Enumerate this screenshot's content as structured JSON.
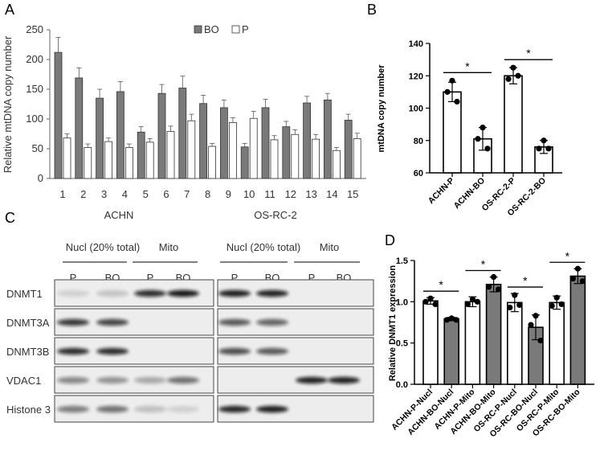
{
  "panels": {
    "A": {
      "letter": "A"
    },
    "B": {
      "letter": "B"
    },
    "C": {
      "letter": "C"
    },
    "D": {
      "letter": "D"
    }
  },
  "chart_data": [
    {
      "id": "A",
      "type": "bar",
      "ylabel": "Relative mtDNA copy number",
      "ylim": [
        0,
        250
      ],
      "yticks": [
        0,
        50,
        100,
        150,
        200,
        250
      ],
      "categories": [
        "1",
        "2",
        "3",
        "4",
        "5",
        "6",
        "7",
        "8",
        "9",
        "10",
        "11",
        "12",
        "13",
        "14",
        "15"
      ],
      "group_labels": [
        "ACHN",
        "OS-RC-2"
      ],
      "series": [
        {
          "name": "BO",
          "color": "#7a7a7a",
          "values": [
            212,
            169,
            135,
            146,
            78,
            143,
            152,
            126,
            119,
            53,
            119,
            87,
            127,
            132,
            98
          ],
          "errors": [
            25,
            17,
            15,
            17,
            9,
            15,
            20,
            14,
            13,
            6,
            14,
            9,
            11,
            11,
            10
          ]
        },
        {
          "name": "P",
          "color": "#ffffff",
          "values": [
            68,
            52,
            62,
            52,
            61,
            79,
            97,
            54,
            94,
            101,
            65,
            74,
            66,
            47,
            67
          ],
          "errors": [
            7,
            6,
            6,
            6,
            6,
            9,
            11,
            5,
            8,
            12,
            7,
            8,
            8,
            5,
            9
          ]
        }
      ]
    },
    {
      "id": "B",
      "type": "bar",
      "ylabel": "mtDNA copy number",
      "ylim": [
        60,
        140
      ],
      "yticks": [
        60,
        80,
        100,
        120,
        140
      ],
      "categories": [
        "ACHN-P",
        "ACHN-BO",
        "OS-RC-2-P",
        "OS-RC-2-BO"
      ],
      "values": [
        110,
        81,
        120,
        76
      ],
      "errors": [
        6,
        7,
        5,
        4
      ],
      "points": [
        [
          117,
          110,
          104
        ],
        [
          88,
          81,
          75
        ],
        [
          125,
          118,
          120
        ],
        [
          80,
          75,
          75
        ]
      ],
      "significance": [
        {
          "pair": [
            0,
            1
          ],
          "label": "*"
        },
        {
          "pair": [
            2,
            3
          ],
          "label": "*"
        }
      ]
    },
    {
      "id": "D",
      "type": "bar",
      "ylabel": "Relative DNMT1 expression",
      "ylim": [
        0,
        1.5
      ],
      "yticks": [
        "0.0",
        "0.5",
        "1.0",
        "1.5"
      ],
      "categories": [
        "ACHN-P-Nucl",
        "ACHN-BO-Nucl",
        "ACHN-P-Mito",
        "ACHN-BO-Mito",
        "OS-RC-P-Nucl",
        "OS-RC-BO-Nucl",
        "OS-RC-P-Mito",
        "OS-RC-BO-Mito"
      ],
      "values": [
        1.01,
        0.79,
        1.0,
        1.21,
        0.99,
        0.69,
        0.99,
        1.31
      ],
      "errors": [
        0.04,
        0.02,
        0.06,
        0.09,
        0.11,
        0.15,
        0.08,
        0.09
      ],
      "colors": [
        "#ffffff",
        "#7a7a7a",
        "#ffffff",
        "#7a7a7a",
        "#ffffff",
        "#7a7a7a",
        "#ffffff",
        "#7a7a7a"
      ],
      "points": [
        [
          1.04,
          1.0,
          0.97
        ],
        [
          0.8,
          0.78,
          0.78
        ],
        [
          1.03,
          0.97,
          1.0
        ],
        [
          1.3,
          1.18,
          1.15
        ],
        [
          1.08,
          0.93,
          0.96
        ],
        [
          0.83,
          0.72,
          0.53
        ],
        [
          1.05,
          0.95,
          0.97
        ],
        [
          1.4,
          1.28,
          1.25
        ]
      ],
      "significance": [
        {
          "pair": [
            0,
            1
          ],
          "label": "*"
        },
        {
          "pair": [
            2,
            3
          ],
          "label": "*"
        },
        {
          "pair": [
            4,
            5
          ],
          "label": "*"
        },
        {
          "pair": [
            6,
            7
          ],
          "label": "*"
        }
      ]
    }
  ],
  "western_blot": {
    "left_header": {
      "nucl": "Nucl (20% total)",
      "mito": "Mito",
      "lanes": [
        "P",
        "BO",
        "P",
        "BO"
      ]
    },
    "right_header": {
      "nucl": "Nucl (20% total)",
      "mito": "Mito",
      "lanes": [
        "P",
        "BO",
        "P",
        "BO"
      ]
    },
    "rows": [
      "DNMT1",
      "DNMT3A",
      "DNMT3B",
      "VDAC1",
      "Histone 3"
    ],
    "left_intensity": [
      [
        0.12,
        0.18,
        0.85,
        0.95
      ],
      [
        0.8,
        0.75,
        0,
        0
      ],
      [
        0.85,
        0.85,
        0,
        0
      ],
      [
        0.45,
        0.4,
        0.3,
        0.55
      ],
      [
        0.5,
        0.55,
        0.2,
        0.12
      ]
    ],
    "right_intensity": [
      [
        0.92,
        0.9,
        0,
        0
      ],
      [
        0.65,
        0.6,
        0,
        0
      ],
      [
        0.7,
        0.65,
        0,
        0
      ],
      [
        0,
        0,
        0.9,
        0.9
      ],
      [
        0.88,
        0.92,
        0,
        0
      ]
    ]
  }
}
